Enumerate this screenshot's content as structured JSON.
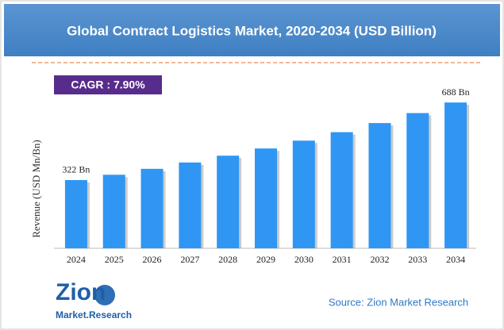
{
  "chart_data": {
    "type": "bar",
    "title": "Global Contract Logistics Market, 2020-2034 (USD Billion)",
    "annotation": "CAGR : 7.90%",
    "y_label": "Revenue (USD Mn/Bn)",
    "categories": [
      "2024",
      "2025",
      "2026",
      "2027",
      "2028",
      "2029",
      "2030",
      "2031",
      "2032",
      "2033",
      "2034"
    ],
    "values": [
      322,
      347,
      375,
      405,
      437,
      471,
      508,
      548,
      591,
      638,
      688
    ],
    "value_labels": [
      "322 Bn",
      null,
      null,
      null,
      null,
      null,
      null,
      null,
      null,
      null,
      "688 Bn"
    ],
    "color": "#2f96f4",
    "ylim": [
      0,
      700
    ],
    "source": "Source: Zion Market Research",
    "logo": {
      "name": "Zion",
      "tagline": "Market.Research"
    }
  }
}
